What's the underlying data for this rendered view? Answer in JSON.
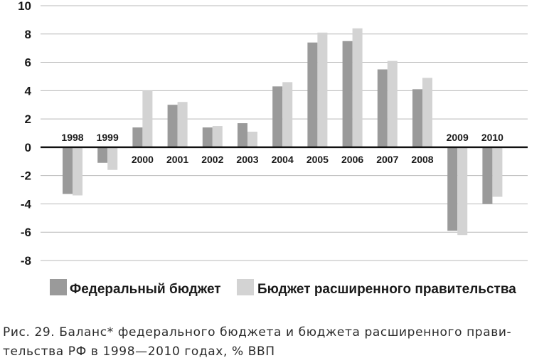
{
  "chart_data": {
    "type": "bar",
    "categories": [
      "1998",
      "1999",
      "2000",
      "2001",
      "2002",
      "2003",
      "2004",
      "2005",
      "2006",
      "2007",
      "2008",
      "2009",
      "2010"
    ],
    "series": [
      {
        "name": "Федеральный бюджет",
        "color": "#9a9a9a",
        "values": [
          -3.3,
          -1.1,
          1.4,
          3.0,
          1.4,
          1.7,
          4.3,
          7.4,
          7.5,
          5.5,
          4.1,
          -5.9,
          -4.0
        ]
      },
      {
        "name": "Бюджет расширенного правительства",
        "color": "#d3d3d3",
        "values": [
          -3.4,
          -1.6,
          4.0,
          3.2,
          1.5,
          1.1,
          4.6,
          8.1,
          8.4,
          6.1,
          4.9,
          -6.2,
          -3.5
        ]
      }
    ],
    "ylim": [
      -8,
      10
    ],
    "yticks": [
      10,
      8,
      6,
      4,
      2,
      0,
      -2,
      -4,
      -6,
      -8
    ],
    "grid": true,
    "legend_position": "bottom"
  },
  "caption": "Рис. 29. Баланс* федерального бюджета и бюджета расширенного прави­тельства РФ в 1998—2010 годах, % ВВП"
}
